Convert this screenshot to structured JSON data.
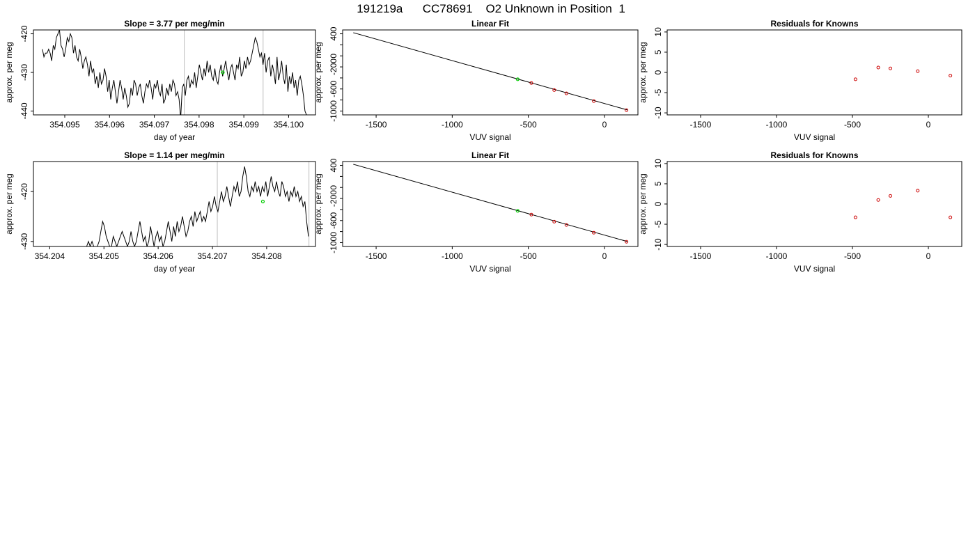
{
  "main_title": "191219a      CC78691    O2 Unknown in Position  1",
  "colors": {
    "axis": "#000000",
    "line": "#000000",
    "known": "#cc0000",
    "unknown": "#00cc00",
    "vline": "#bdbdbd"
  },
  "chart_data": [
    {
      "type": "line",
      "panel": "trace-1",
      "title": "Slope =  3.77  per meg/min",
      "xlabel": "day of year",
      "ylabel": "approx. per meg",
      "xlim": [
        354.0943,
        354.1006
      ],
      "ylim": [
        -441,
        -419
      ],
      "xticks": [
        354.095,
        354.096,
        354.097,
        354.098,
        354.099,
        354.1
      ],
      "xtick_labels": [
        "354.095",
        "354.096",
        "354.097",
        "354.098",
        "354.099",
        "354.100"
      ],
      "yticks": [
        -440,
        -430,
        -420
      ],
      "ytick_labels": [
        "-440",
        "-430",
        "-420"
      ],
      "vlines": [
        354.09767,
        354.09943
      ],
      "unknown_point": {
        "x": 354.09853,
        "y": -430
      },
      "series_x_range": [
        354.0945,
        354.1004
      ],
      "series_y": [
        -424,
        -426,
        -425,
        -425,
        -424,
        -425,
        -427,
        -423,
        -424,
        -421,
        -420,
        -419,
        -423,
        -424,
        -426,
        -424,
        -421,
        -422,
        -420,
        -421,
        -425,
        -423,
        -426,
        -427,
        -424,
        -426,
        -429,
        -427,
        -426,
        -428,
        -431,
        -427,
        -430,
        -429,
        -433,
        -431,
        -434,
        -430,
        -433,
        -432,
        -429,
        -431,
        -435,
        -432,
        -437,
        -434,
        -432,
        -435,
        -438,
        -435,
        -432,
        -434,
        -437,
        -434,
        -436,
        -439,
        -438,
        -434,
        -436,
        -432,
        -433,
        -436,
        -434,
        -433,
        -436,
        -438,
        -435,
        -433,
        -434,
        -432,
        -434,
        -437,
        -433,
        -434,
        -432,
        -435,
        -436,
        -433,
        -438,
        -437,
        -434,
        -436,
        -433,
        -435,
        -432,
        -433,
        -436,
        -435,
        -437,
        -442,
        -434,
        -433,
        -436,
        -432,
        -431,
        -434,
        -432,
        -433,
        -430,
        -434,
        -431,
        -428,
        -430,
        -432,
        -429,
        -431,
        -427,
        -430,
        -428,
        -431,
        -432,
        -429,
        -432,
        -433,
        -430,
        -428,
        -431,
        -429,
        -427,
        -430,
        -432,
        -429,
        -428,
        -430,
        -432,
        -428,
        -429,
        -426,
        -431,
        -430,
        -427,
        -429,
        -426,
        -428,
        -427,
        -425,
        -423,
        -421,
        -422,
        -424,
        -426,
        -425,
        -428,
        -425,
        -430,
        -427,
        -426,
        -431,
        -428,
        -430,
        -433,
        -426,
        -432,
        -430,
        -427,
        -431,
        -433,
        -428,
        -435,
        -431,
        -433,
        -430,
        -434,
        -432,
        -436,
        -432,
        -431,
        -433,
        -436,
        -440,
        -441
      ]
    },
    {
      "type": "scatter",
      "panel": "fit-1",
      "title": "Linear Fit",
      "xlabel": "VUV signal",
      "ylabel": "approx. per meg",
      "xlim": [
        -1720,
        220
      ],
      "ylim": [
        -1070,
        470
      ],
      "xticks": [
        -1500,
        -1000,
        -500,
        0
      ],
      "xtick_labels": [
        "-1500",
        "-1000",
        "-500",
        "0"
      ],
      "yticks": [
        -1000,
        -800,
        -600,
        -400,
        -200,
        0,
        200,
        400
      ],
      "ytick_labels": [
        "-1000",
        "",
        "-600",
        "",
        "-200",
        "0",
        "",
        "400"
      ],
      "fit_line": {
        "x": [
          -1650,
          150
        ],
        "y": [
          420,
          -980
        ]
      },
      "known_points": [
        {
          "x": -480,
          "y": -493
        },
        {
          "x": -330,
          "y": -620
        },
        {
          "x": -250,
          "y": -680
        },
        {
          "x": -70,
          "y": -820
        },
        {
          "x": 145,
          "y": -985
        }
      ],
      "unknown_point": {
        "x": -570,
        "y": -424
      }
    },
    {
      "type": "scatter",
      "panel": "resid-1",
      "title": "Residuals for Knowns",
      "xlabel": "VUV signal",
      "ylabel": "approx. per meg",
      "xlim": [
        -1720,
        220
      ],
      "ylim": [
        -10.5,
        10.5
      ],
      "xticks": [
        -1500,
        -1000,
        -500,
        0
      ],
      "xtick_labels": [
        "-1500",
        "-1000",
        "-500",
        "0"
      ],
      "yticks": [
        -10,
        -5,
        0,
        5,
        10
      ],
      "ytick_labels": [
        "-10",
        "-5",
        "0",
        "5",
        "10"
      ],
      "known_points": [
        {
          "x": -480,
          "y": -1.7
        },
        {
          "x": -330,
          "y": 1.2
        },
        {
          "x": -250,
          "y": 1.0
        },
        {
          "x": -70,
          "y": 0.3
        },
        {
          "x": 145,
          "y": -0.8
        }
      ]
    },
    {
      "type": "line",
      "panel": "trace-2",
      "title": "Slope =  1.14  per meg/min",
      "xlabel": "day of year",
      "ylabel": "approx. per meg",
      "xlim": [
        354.2037,
        354.2089
      ],
      "ylim": [
        -431,
        -414
      ],
      "xticks": [
        354.204,
        354.205,
        354.206,
        354.207,
        354.208
      ],
      "xtick_labels": [
        "354.204",
        "354.205",
        "354.206",
        "354.207",
        "354.208"
      ],
      "yticks": [
        -430,
        -420
      ],
      "ytick_labels": [
        "-430",
        "-420"
      ],
      "vlines": [
        354.20709,
        354.20878
      ],
      "unknown_point": {
        "x": 354.20793,
        "y": -422
      },
      "series_x_range": [
        354.2037,
        354.20877
      ],
      "series_y": [
        -431,
        -431,
        -431,
        -431,
        -431,
        -431,
        -431,
        -431,
        -431,
        -431,
        -431,
        -431,
        -431,
        -431,
        -431,
        -431,
        -431,
        -431,
        -431,
        -431,
        -431,
        -431,
        -431,
        -431,
        -431,
        -431,
        -431,
        -431,
        -431,
        -431,
        -431,
        -430,
        -431,
        -430,
        -431,
        -431,
        -431,
        -430,
        -428,
        -426,
        -427,
        -429,
        -430,
        -431,
        -431,
        -429,
        -430,
        -431,
        -430,
        -429,
        -428,
        -429,
        -430,
        -431,
        -430,
        -428,
        -430,
        -431,
        -430,
        -428,
        -426,
        -428,
        -430,
        -429,
        -431,
        -430,
        -427,
        -429,
        -431,
        -429,
        -428,
        -430,
        -429,
        -431,
        -430,
        -428,
        -426,
        -428,
        -430,
        -427,
        -429,
        -426,
        -428,
        -427,
        -425,
        -427,
        -429,
        -428,
        -426,
        -425,
        -427,
        -424,
        -426,
        -425,
        -424,
        -426,
        -425,
        -426,
        -424,
        -422,
        -424,
        -423,
        -421,
        -423,
        -424,
        -422,
        -420,
        -422,
        -421,
        -419,
        -421,
        -423,
        -421,
        -419,
        -420,
        -418,
        -421,
        -420,
        -417,
        -415,
        -417,
        -420,
        -421,
        -419,
        -420,
        -418,
        -420,
        -419,
        -421,
        -419,
        -420,
        -418,
        -421,
        -419,
        -417,
        -419,
        -420,
        -418,
        -420,
        -421,
        -418,
        -419,
        -421,
        -420,
        -422,
        -420,
        -421,
        -419,
        -421,
        -420,
        -422,
        -421,
        -423,
        -422,
        -426,
        -429
      ]
    },
    {
      "type": "scatter",
      "panel": "fit-2",
      "title": "Linear Fit",
      "xlabel": "VUV signal",
      "ylabel": "approx. per meg",
      "xlim": [
        -1720,
        220
      ],
      "ylim": [
        -1070,
        470
      ],
      "xticks": [
        -1500,
        -1000,
        -500,
        0
      ],
      "xtick_labels": [
        "-1500",
        "-1000",
        "-500",
        "0"
      ],
      "yticks": [
        -1000,
        -800,
        -600,
        -400,
        -200,
        0,
        200,
        400
      ],
      "ytick_labels": [
        "-1000",
        "",
        "-600",
        "",
        "-200",
        "0",
        "",
        "400"
      ],
      "fit_line": {
        "x": [
          -1650,
          150
        ],
        "y": [
          420,
          -980
        ]
      },
      "known_points": [
        {
          "x": -480,
          "y": -493
        },
        {
          "x": -330,
          "y": -620
        },
        {
          "x": -250,
          "y": -680
        },
        {
          "x": -70,
          "y": -820
        },
        {
          "x": 145,
          "y": -985
        }
      ],
      "unknown_point": {
        "x": -570,
        "y": -424
      }
    },
    {
      "type": "scatter",
      "panel": "resid-2",
      "title": "Residuals for Knowns",
      "xlabel": "VUV signal",
      "ylabel": "approx. per meg",
      "xlim": [
        -1720,
        220
      ],
      "ylim": [
        -10.5,
        10.5
      ],
      "xticks": [
        -1500,
        -1000,
        -500,
        0
      ],
      "xtick_labels": [
        "-1500",
        "-1000",
        "-500",
        "0"
      ],
      "yticks": [
        -10,
        -5,
        0,
        5,
        10
      ],
      "ytick_labels": [
        "-10",
        "-5",
        "0",
        "5",
        "10"
      ],
      "known_points": [
        {
          "x": -480,
          "y": -3.3
        },
        {
          "x": -330,
          "y": 1.0
        },
        {
          "x": -250,
          "y": 2.0
        },
        {
          "x": -70,
          "y": 3.3
        },
        {
          "x": 145,
          "y": -3.3
        }
      ]
    }
  ]
}
